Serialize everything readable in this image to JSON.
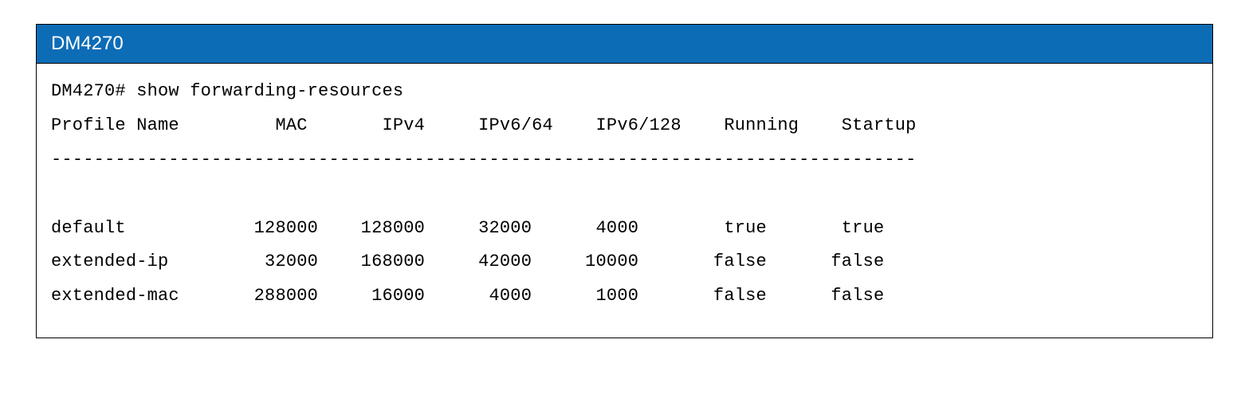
{
  "header": {
    "title": "DM4270",
    "bg_color": "#0d6cb6",
    "text_color": "#ffffff"
  },
  "terminal": {
    "prompt_line": "DM4270# show forwarding-resources",
    "column_header": "Profile Name         MAC       IPv4     IPv6/64    IPv6/128    Running    Startup",
    "separator": "---------------------------------------------------------------------------------",
    "rows": [
      "default            128000    128000     32000      4000        true       true",
      "extended-ip         32000    168000     42000     10000       false      false",
      "extended-mac       288000     16000      4000      1000       false      false"
    ],
    "font_family": "Courier New",
    "font_size_pt": 17,
    "text_color": "#000000",
    "background_color": "#ffffff",
    "border_color": "#000000"
  },
  "table_data": {
    "type": "table",
    "columns": [
      "Profile Name",
      "MAC",
      "IPv4",
      "IPv6/64",
      "IPv6/128",
      "Running",
      "Startup"
    ],
    "rows": [
      [
        "default",
        128000,
        128000,
        32000,
        4000,
        "true",
        "true"
      ],
      [
        "extended-ip",
        32000,
        168000,
        42000,
        10000,
        "false",
        "false"
      ],
      [
        "extended-mac",
        288000,
        16000,
        4000,
        1000,
        "false",
        "false"
      ]
    ],
    "command": "show forwarding-resources",
    "device_prompt": "DM4270#"
  }
}
